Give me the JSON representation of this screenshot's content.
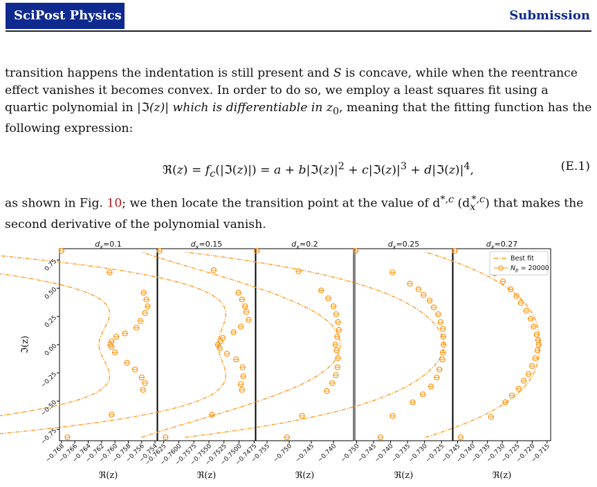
{
  "header": {
    "brand": "SciPost Physics",
    "kind": "Submission"
  },
  "text": {
    "p1_a": "transition happens the indentation is still present and ",
    "p1_S1": "S",
    "p1_b": " is concave, while when the reentrance effect vanishes it becomes convex. In order to do so, we employ a least squares fit using a quartic polynomial in |",
    "p1_fr": "ℑ",
    "p1_c": "(z)| which is differentiable in z",
    "p1_sub": "0",
    "p1_d": ", meaning that the fitting function has the following expression:",
    "eq_latex": "ℜ(z) = f_c(|ℑ(z)|) = a + b|ℑ(z)|^2 + c|ℑ(z)|^3 + d|ℑ(z)|^4,",
    "eq_num": "(E.1)",
    "p2_a": "as shown in Fig. ",
    "p2_ref": "10",
    "p2_b": "; we then locate the transition point at the value of d",
    "p2_sup1": "*,c",
    "p2_c": " (d",
    "p2_sub2": "x",
    "p2_sup2": "*,c",
    "p2_d": ") that makes the second derivative of the polynomial vanish."
  },
  "chart_data": {
    "type": "scatter",
    "ylabel": "ℑ(z)",
    "xlabel": "ℜ(z)",
    "ylim": [
      -0.85,
      0.85
    ],
    "yticks": [
      -0.75,
      -0.5,
      -0.25,
      0.0,
      0.25,
      0.5,
      0.75
    ],
    "ytick_labels": [
      "−0.75",
      "−0.50",
      "−0.25",
      "0.00",
      "0.25",
      "0.50",
      "0.75"
    ],
    "legend": {
      "placement": "top-right",
      "fit_label": "Best fit",
      "data_label": "N_p = 20000"
    },
    "colors": {
      "fit": "#ff9a1f",
      "points": "#ff8c00"
    },
    "panels": [
      {
        "title": "d_x=0.1",
        "xlim": [
          -0.7683,
          -0.7537
        ],
        "xticks": [
          -0.768,
          -0.766,
          -0.764,
          -0.762,
          -0.76,
          -0.758,
          -0.756,
          -0.754
        ],
        "xtick_labels": [
          "−0.768",
          "−0.766",
          "−0.764",
          "−0.762",
          "−0.760",
          "−0.758",
          "−0.756",
          "−0.754"
        ],
        "coeffs": [
          -0.7624,
          0.06,
          -0.13,
          -0.04
        ],
        "points": [
          [
            -0.768,
            0.83
          ],
          [
            -0.7671,
            -0.82
          ],
          [
            -0.7608,
            0.64
          ],
          [
            -0.7557,
            0.46
          ],
          [
            -0.7553,
            0.4
          ],
          [
            -0.7551,
            0.34
          ],
          [
            -0.7555,
            0.28
          ],
          [
            -0.7562,
            0.21
          ],
          [
            -0.7568,
            0.15
          ],
          [
            -0.7585,
            0.1
          ],
          [
            -0.7598,
            0.07
          ],
          [
            -0.7605,
            0.03
          ],
          [
            -0.7607,
            0.0
          ],
          [
            -0.7605,
            -0.02
          ],
          [
            -0.76,
            -0.07
          ],
          [
            -0.7582,
            -0.16
          ],
          [
            -0.757,
            -0.22
          ],
          [
            -0.756,
            -0.29
          ],
          [
            -0.7555,
            -0.34
          ],
          [
            -0.7558,
            -0.4
          ],
          [
            -0.7605,
            -0.62
          ]
        ]
      },
      {
        "title": "d_x=0.15",
        "xlim": [
          -0.7635,
          -0.7473
        ],
        "xticks": [
          -0.7625,
          -0.76,
          -0.7575,
          -0.755,
          -0.7525,
          -0.75,
          -0.7475
        ],
        "xtick_labels": [
          "−0.7625",
          "−0.7600",
          "−0.7575",
          "−0.7550",
          "−0.7525",
          "−0.7500",
          "−0.7475"
        ],
        "coeffs": [
          -0.7535,
          0.05,
          -0.11,
          -0.035
        ],
        "points": [
          [
            -0.7632,
            0.83
          ],
          [
            -0.7622,
            -0.82
          ],
          [
            -0.7542,
            0.66
          ],
          [
            -0.7501,
            0.46
          ],
          [
            -0.7495,
            0.4
          ],
          [
            -0.749,
            0.34
          ],
          [
            -0.7488,
            0.29
          ],
          [
            -0.7484,
            0.22
          ],
          [
            -0.7497,
            0.16
          ],
          [
            -0.7509,
            0.11
          ],
          [
            -0.7527,
            0.06
          ],
          [
            -0.7531,
            0.03
          ],
          [
            -0.7535,
            0.0
          ],
          [
            -0.7532,
            -0.03
          ],
          [
            -0.752,
            -0.08
          ],
          [
            -0.7505,
            -0.13
          ],
          [
            -0.7494,
            -0.2
          ],
          [
            -0.7493,
            -0.28
          ],
          [
            -0.7497,
            -0.35
          ],
          [
            -0.7495,
            -0.4
          ],
          [
            -0.7545,
            -0.62
          ]
        ]
      },
      {
        "title": "d_x=0.2",
        "xlim": [
          -0.7575,
          -0.7355
        ],
        "xticks": [
          -0.755,
          -0.75,
          -0.745,
          -0.74
        ],
        "xtick_labels": [
          "−0.755",
          "−0.750",
          "−0.745",
          "−0.740"
        ],
        "coeffs": [
          -0.7385,
          -0.05,
          -0.09,
          0.085
        ],
        "points": [
          [
            -0.7573,
            0.83
          ],
          [
            -0.7505,
            -0.82
          ],
          [
            -0.7479,
            0.65
          ],
          [
            -0.7428,
            0.48
          ],
          [
            -0.7412,
            0.41
          ],
          [
            -0.74,
            0.34
          ],
          [
            -0.7394,
            0.27
          ],
          [
            -0.739,
            0.2
          ],
          [
            -0.7388,
            0.13
          ],
          [
            -0.7392,
            0.07
          ],
          [
            -0.7396,
            0.0
          ],
          [
            -0.7393,
            -0.05
          ],
          [
            -0.739,
            -0.12
          ],
          [
            -0.7391,
            -0.2
          ],
          [
            -0.7395,
            -0.27
          ],
          [
            -0.7403,
            -0.34
          ],
          [
            -0.7415,
            -0.41
          ],
          [
            -0.7471,
            -0.63
          ]
        ]
      },
      {
        "title": "d_x=0.25",
        "xlim": [
          -0.7505,
          -0.7218
        ],
        "xticks": [
          -0.75,
          -0.745,
          -0.74,
          -0.735,
          -0.73,
          -0.725
        ],
        "xtick_labels": [
          "−0.750",
          "−0.745",
          "−0.740",
          "−0.735",
          "−0.730",
          "−0.725"
        ],
        "coeffs": [
          -0.7243,
          -0.09,
          0.07,
          -0.12
        ],
        "points": [
          [
            -0.7503,
            0.83
          ],
          [
            -0.743,
            -0.82
          ],
          [
            -0.7394,
            0.64
          ],
          [
            -0.7343,
            0.54
          ],
          [
            -0.7318,
            0.49
          ],
          [
            -0.7303,
            0.44
          ],
          [
            -0.7285,
            0.39
          ],
          [
            -0.7273,
            0.33
          ],
          [
            -0.726,
            0.27
          ],
          [
            -0.7253,
            0.2
          ],
          [
            -0.7246,
            0.14
          ],
          [
            -0.7245,
            0.07
          ],
          [
            -0.7244,
            0.0
          ],
          [
            -0.7246,
            -0.07
          ],
          [
            -0.7248,
            -0.13
          ],
          [
            -0.7256,
            -0.22
          ],
          [
            -0.7264,
            -0.29
          ],
          [
            -0.7281,
            -0.37
          ],
          [
            -0.7305,
            -0.44
          ],
          [
            -0.7335,
            -0.51
          ],
          [
            -0.7394,
            -0.63
          ]
        ]
      },
      {
        "title": "d_x=0.27",
        "xlim": [
          -0.7465,
          -0.7138
        ],
        "xticks": [
          -0.745,
          -0.74,
          -0.735,
          -0.73,
          -0.725,
          -0.72,
          -0.715
        ],
        "xtick_labels": [
          "−0.745",
          "−0.740",
          "−0.735",
          "−0.730",
          "−0.725",
          "−0.720",
          "−0.715"
        ],
        "coeffs": [
          -0.7175,
          -0.02,
          -0.045,
          0.0
        ],
        "points": [
          [
            -0.746,
            0.83
          ],
          [
            -0.744,
            -0.82
          ],
          [
            -0.7338,
            -0.64
          ],
          [
            -0.7326,
            0.63
          ],
          [
            -0.7298,
            0.56
          ],
          [
            -0.7272,
            0.49
          ],
          [
            -0.7253,
            0.43
          ],
          [
            -0.7238,
            0.37
          ],
          [
            -0.722,
            0.3
          ],
          [
            -0.7205,
            0.23
          ],
          [
            -0.7195,
            0.16
          ],
          [
            -0.7185,
            0.09
          ],
          [
            -0.718,
            0.04
          ],
          [
            -0.7178,
            0.0
          ],
          [
            -0.7182,
            -0.05
          ],
          [
            -0.719,
            -0.12
          ],
          [
            -0.72,
            -0.19
          ],
          [
            -0.7212,
            -0.26
          ],
          [
            -0.7228,
            -0.32
          ],
          [
            -0.7245,
            -0.39
          ],
          [
            -0.7268,
            -0.45
          ],
          [
            -0.729,
            -0.51
          ]
        ]
      }
    ]
  }
}
